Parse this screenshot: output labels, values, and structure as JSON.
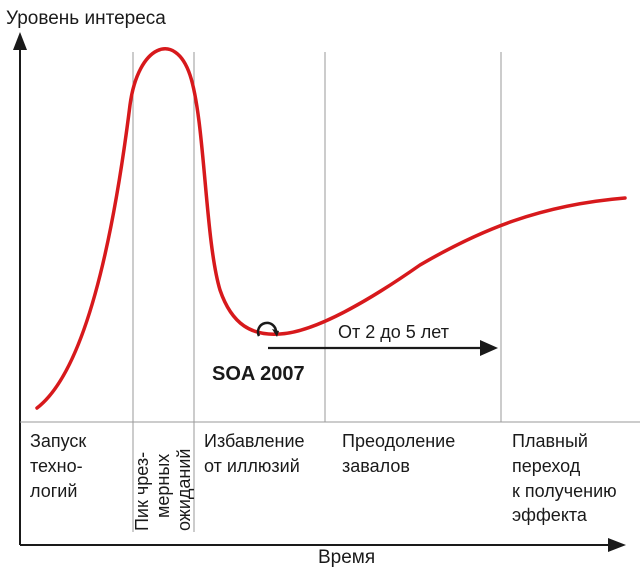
{
  "axes": {
    "y_label": "Уровень интереса",
    "x_label": "Время"
  },
  "curve_color": "#d7191c",
  "phases": [
    {
      "lines": [
        "Запуск",
        "техно-",
        "логий"
      ]
    },
    {
      "lines": [
        "Пик чрез-",
        "мерных",
        "ожиданий"
      ],
      "vertical": true
    },
    {
      "lines": [
        "Избавление",
        "от иллюзий"
      ]
    },
    {
      "lines": [
        "Преодоление",
        "завалов"
      ]
    },
    {
      "lines": [
        "Плавный",
        "переход",
        "к получению",
        "эффекта"
      ]
    }
  ],
  "marker": {
    "label": "SOA 2007",
    "icon": "circular-arrow-icon"
  },
  "duration_arrow": {
    "label": "От 2 до 5 лет"
  }
}
